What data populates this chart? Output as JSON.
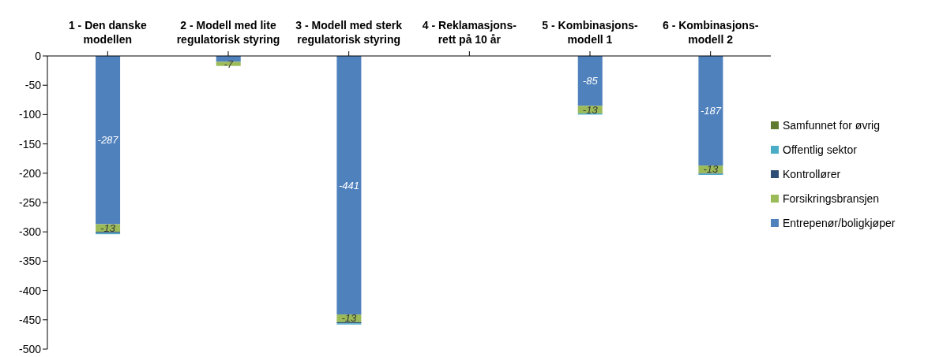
{
  "chart_data": {
    "type": "bar",
    "stacked": true,
    "categories": [
      "1 - Den danske modellen",
      "2 - Modell med lite regulatorisk styring",
      "3 - Modell med sterk regulatorisk styring",
      "4 - Reklamasjons-rett på 10 år",
      "5 - Kombinasjons-modell 1",
      "6 - Kombinasjons-modell 2"
    ],
    "series": [
      {
        "name": "Entrepenør/boligkjøper",
        "color": "#4f81bd",
        "values": [
          -287,
          -10,
          -441,
          null,
          -85,
          -187
        ],
        "value_labels": [
          "-287",
          null,
          "-441",
          null,
          "-85",
          "-187"
        ]
      },
      {
        "name": "Forsikringsbransjen",
        "color": "#9bbb59",
        "values": [
          -13,
          -7,
          -13,
          null,
          -13,
          -13
        ],
        "value_labels": [
          "-13",
          "-7",
          "-13",
          null,
          "-13",
          "-13"
        ]
      },
      {
        "name": "Kontrollører",
        "color": "#2c4d75",
        "values": [
          -2,
          null,
          -2,
          null,
          null,
          -1
        ],
        "value_labels": [
          null,
          null,
          null,
          null,
          null,
          null
        ]
      },
      {
        "name": "Offentlig sektor",
        "color": "#4bacc6",
        "values": [
          -2,
          null,
          -2,
          null,
          -2,
          -2
        ],
        "value_labels": [
          null,
          null,
          null,
          null,
          null,
          null
        ]
      },
      {
        "name": "Samfunnet for øvrig",
        "color": "#5f7a2e",
        "values": [
          null,
          null,
          null,
          null,
          null,
          null
        ],
        "value_labels": [
          null,
          null,
          null,
          null,
          null,
          null
        ]
      }
    ],
    "ylim": [
      -500,
      0
    ],
    "yticks": [
      0,
      -50,
      -100,
      -150,
      -200,
      -250,
      -300,
      -350,
      -400,
      -450,
      -500
    ],
    "grid": false,
    "legend": "right"
  }
}
